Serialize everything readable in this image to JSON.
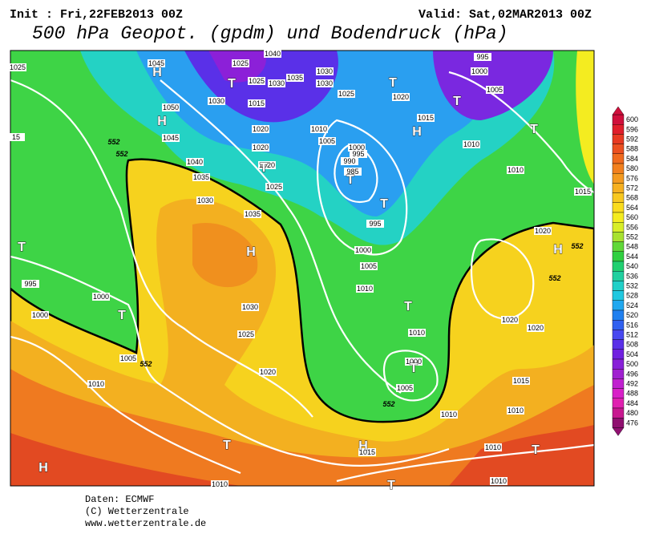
{
  "header": {
    "init": "Init : Fri,22FEB2013 00Z",
    "valid": "Valid: Sat,02MAR2013 00Z",
    "title": "500 hPa Geopot. (gpdm) und Bodendruck (hPa)"
  },
  "colorbar": {
    "levels": [
      600,
      596,
      592,
      588,
      584,
      580,
      576,
      572,
      568,
      564,
      560,
      556,
      552,
      548,
      544,
      540,
      536,
      532,
      528,
      524,
      520,
      516,
      512,
      508,
      504,
      500,
      496,
      492,
      488,
      484,
      480,
      476
    ],
    "colors": [
      "#d0103c",
      "#e01e2c",
      "#e83a22",
      "#ec5020",
      "#f06a1e",
      "#f2801e",
      "#f49a20",
      "#f6b020",
      "#f8c820",
      "#fadc1e",
      "#f4ec20",
      "#d8ee28",
      "#a8e230",
      "#60d838",
      "#30d040",
      "#20d070",
      "#20d0a0",
      "#20d0c8",
      "#20c8e0",
      "#20a8f0",
      "#2080f0",
      "#3060f0",
      "#4848f0",
      "#5a30e8",
      "#7020e0",
      "#8820d8",
      "#a020d0",
      "#c020d0",
      "#d820c8",
      "#e020b0",
      "#c81890",
      "#901070"
    ]
  },
  "map": {
    "isobar_labels": [
      "1025",
      "1045",
      "1025",
      "1040",
      "1025",
      "1030",
      "1035",
      "1030",
      "1030",
      "995",
      "1000",
      "1005",
      "1050",
      "1030",
      "1015",
      "1025",
      "1020",
      "1015",
      "1045",
      "1020",
      "1010",
      "1005",
      "15",
      "1020",
      "1000",
      "995",
      "990",
      "1010",
      "1040",
      "1020",
      "985",
      "1010",
      "1035",
      "1025",
      "1015",
      "1030",
      "1035",
      "995",
      "1020",
      "1000",
      "995",
      "1005",
      "1010",
      "1000",
      "1030",
      "1000",
      "1020",
      "1020",
      "1010",
      "1025",
      "1000",
      "1005",
      "1020",
      "1015",
      "1010",
      "1005",
      "1010",
      "1010",
      "1015",
      "1010",
      "1010",
      "1010"
    ],
    "height_labels": [
      "552",
      "552",
      "552",
      "552",
      "552",
      "552"
    ],
    "centers": [
      "H",
      "T",
      "H",
      "T",
      "T",
      "T",
      "H",
      "T",
      "T",
      "T",
      "T",
      "H",
      "H",
      "T",
      "T",
      "T",
      "T",
      "H",
      "T",
      "H",
      "T"
    ]
  },
  "footer": [
    "Daten: ECMWF",
    "(C) Wetterzentrale",
    "www.wetterzentrale.de"
  ]
}
